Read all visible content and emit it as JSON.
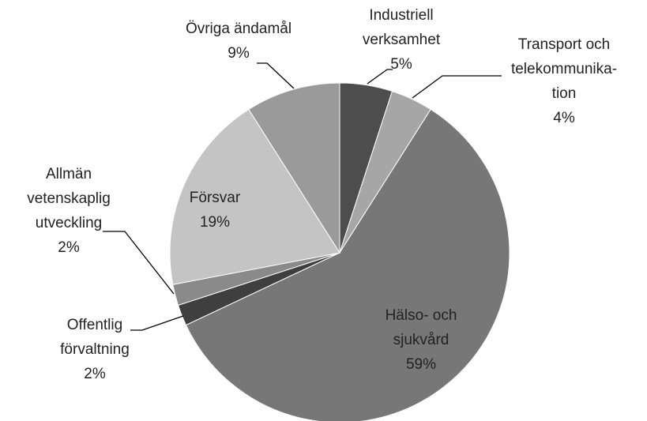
{
  "chart_data": {
    "type": "pie",
    "categories": [
      "Industriell\nverksamhet",
      "Transport och\ntelekommunika-\ntion",
      "Hälso- och\nsjukvård",
      "Offentlig\nförvaltning",
      "Allmän\nvetenskaplig\nutveckling",
      "Försvar",
      "Övriga ändamål"
    ],
    "values": [
      5,
      4,
      59,
      2,
      2,
      19,
      9
    ],
    "value_labels": [
      "5%",
      "4%",
      "59%",
      "2%",
      "2%",
      "19%",
      "9%"
    ],
    "colors": [
      "#4d4d4d",
      "#a6a6a6",
      "#777777",
      "#3f3f3f",
      "#8a8a8a",
      "#c4c4c4",
      "#9a9a9a"
    ]
  }
}
